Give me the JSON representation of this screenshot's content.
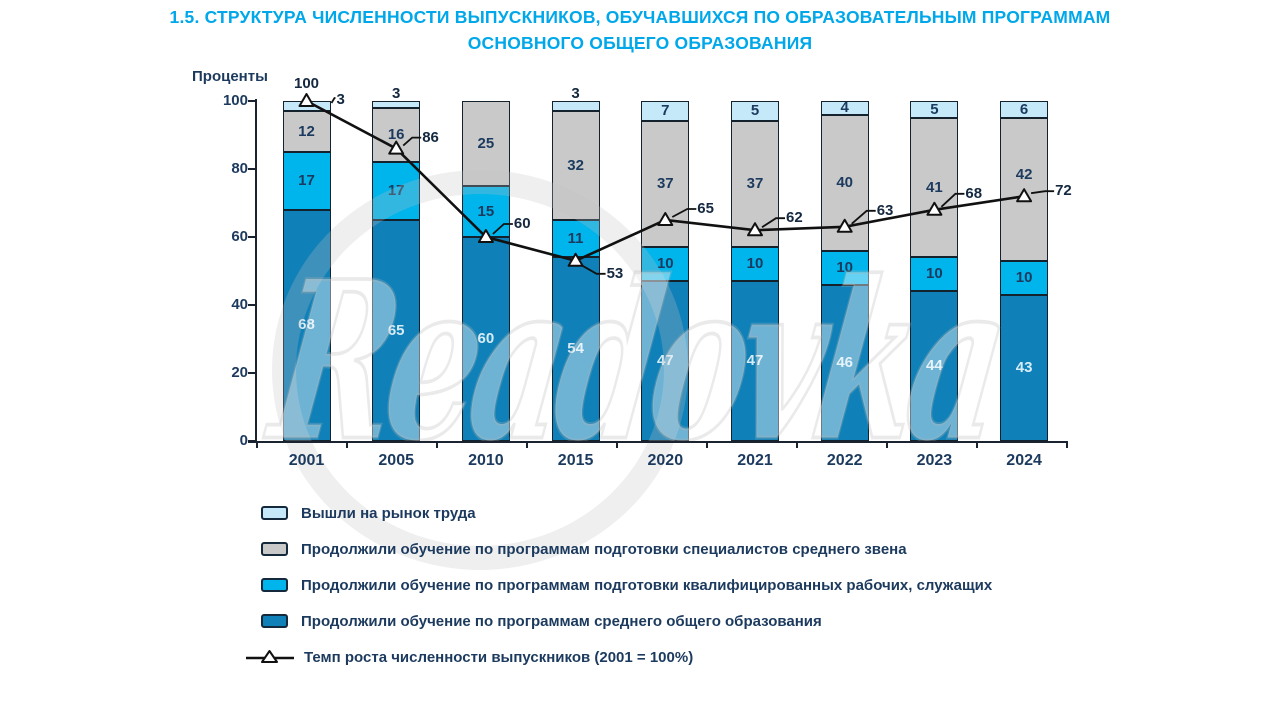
{
  "title": {
    "line1": "1.5. СТРУКТУРА ЧИСЛЕННОСТИ ВЫПУСКНИКОВ, ОБУЧАВШИХСЯ ПО ОБРАЗОВАТЕЛЬНЫМ ПРОГРАММАМ",
    "line2": "ОСНОВНОГО ОБЩЕГО ОБРАЗОВАНИЯ"
  },
  "axis": {
    "y_unit_label": "Проценты",
    "y_ticks": [
      0,
      20,
      40,
      60,
      80,
      100
    ],
    "ylim": [
      0,
      100
    ]
  },
  "watermark": {
    "text": "Readovka"
  },
  "colors": {
    "title": "#00a8ea",
    "text_navy": "#1c3a5e",
    "bar_dark_blue": "#0f81b8",
    "bar_cyan": "#00b4ec",
    "bar_grey": "#c9c9c9",
    "bar_light_blue": "#c6e9fa",
    "line_black": "#111111"
  },
  "chart_data": {
    "type": "bar",
    "stacked": true,
    "categories": [
      "2001",
      "2005",
      "2010",
      "2015",
      "2020",
      "2021",
      "2022",
      "2023",
      "2024"
    ],
    "series": [
      {
        "name": "Продолжили обучение по программам среднего общего образования",
        "color": "#0f81b8",
        "label_color": "#d8ecf7",
        "values": [
          68,
          65,
          60,
          54,
          47,
          47,
          46,
          44,
          43
        ]
      },
      {
        "name": "Продолжили обучение по программам подготовки квалифицированных рабочих, служащих",
        "color": "#00b4ec",
        "label_color": "#1c3a5e",
        "values": [
          17,
          17,
          15,
          11,
          10,
          10,
          10,
          10,
          10
        ]
      },
      {
        "name": "Продолжили обучение по программам подготовки специалистов среднего звена",
        "color": "#c9c9c9",
        "label_color": "#1c3a5e",
        "values": [
          12,
          16,
          25,
          32,
          37,
          37,
          40,
          41,
          42
        ]
      },
      {
        "name": "Вышли на рынок труда",
        "color": "#c6e9fa",
        "label_color": "#1c3a5e",
        "values": [
          3,
          3,
          null,
          3,
          7,
          5,
          4,
          5,
          6
        ]
      }
    ],
    "top_label_pos": [
      "leader",
      "above",
      null,
      "above",
      "inside",
      "inside",
      "inside",
      "inside",
      "inside"
    ],
    "line_series": {
      "name": "Темп роста численности выпускников (2001 = 100%)",
      "values": [
        100,
        86,
        60,
        53,
        65,
        62,
        63,
        68,
        72
      ],
      "color": "#111111"
    },
    "title": "1.5. Структура численности выпускников, обучавшихся по образовательным программам основного общего образования",
    "ylabel": "Проценты",
    "ylim": [
      0,
      100
    ]
  },
  "legend": {
    "items": [
      {
        "type": "box",
        "color": "#c6e9fa",
        "label": "Вышли на рынок труда"
      },
      {
        "type": "box",
        "color": "#c9c9c9",
        "label": "Продолжили обучение по программам подготовки специалистов среднего звена"
      },
      {
        "type": "box",
        "color": "#00b4ec",
        "label": "Продолжили обучение по программам подготовки квалифицированных рабочих, служащих"
      },
      {
        "type": "box",
        "color": "#0f81b8",
        "label": "Продолжили обучение по программам среднего общего образования"
      },
      {
        "type": "line-marker",
        "label": "Темп роста численности выпускников (2001 = 100%)"
      }
    ]
  }
}
